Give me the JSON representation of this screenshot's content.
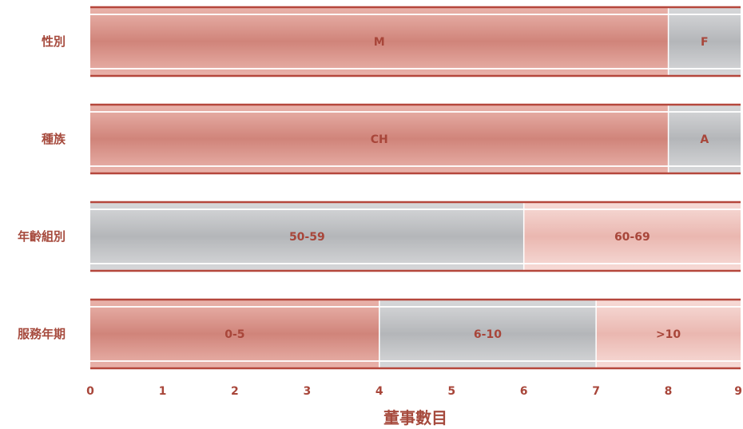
{
  "chart_data": {
    "type": "bar",
    "orientation": "horizontal-stacked",
    "xlabel": "董事數目",
    "xlim": [
      0,
      9
    ],
    "xticks": [
      "0",
      "1",
      "2",
      "3",
      "4",
      "5",
      "6",
      "7",
      "8",
      "9"
    ],
    "categories": [
      {
        "label": "性別",
        "segments": [
          {
            "label": "M",
            "value": 8,
            "style": "red"
          },
          {
            "label": "F",
            "value": 1,
            "style": "gray"
          }
        ]
      },
      {
        "label": "種族",
        "segments": [
          {
            "label": "CH",
            "value": 8,
            "style": "red"
          },
          {
            "label": "A",
            "value": 1,
            "style": "gray"
          }
        ]
      },
      {
        "label": "年齡組別",
        "segments": [
          {
            "label": "50-59",
            "value": 6,
            "style": "gray"
          },
          {
            "label": "60-69",
            "value": 3,
            "style": "pink"
          }
        ]
      },
      {
        "label": "服務年期",
        "segments": [
          {
            "label": "0-5",
            "value": 4,
            "style": "red"
          },
          {
            "label": "6-10",
            "value": 3,
            "style": "gray"
          },
          {
            "label": ">10",
            "value": 2,
            "style": "pink"
          }
        ]
      }
    ],
    "colors": {
      "red": "#d8948a",
      "gray": "#c2c4c7",
      "pink": "#f0c5bf",
      "border": "#b5473c",
      "text": "#a8463a"
    }
  }
}
